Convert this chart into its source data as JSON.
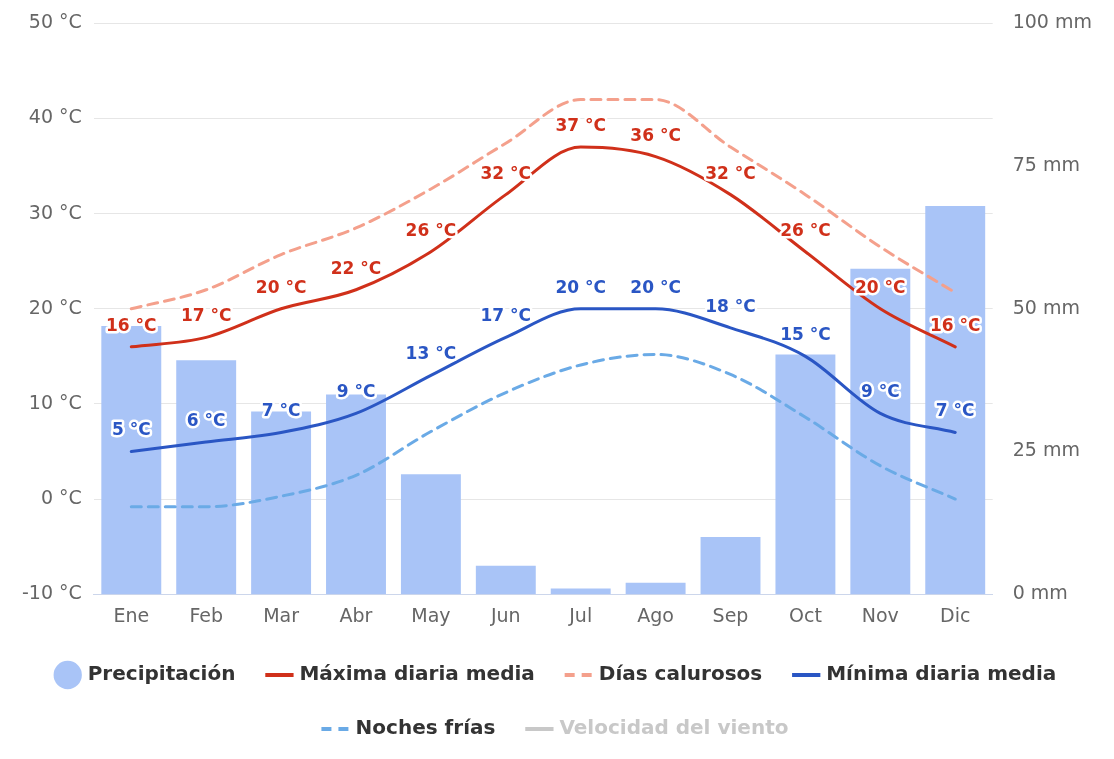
{
  "chart_data": {
    "type": "line",
    "categories": [
      "Ene",
      "Feb",
      "Mar",
      "Abr",
      "May",
      "Jun",
      "Jul",
      "Ago",
      "Sep",
      "Oct",
      "Nov",
      "Dic"
    ],
    "ylim": [
      -10,
      50
    ],
    "yticks": [
      {
        "value": -10,
        "label": "-10 °C"
      },
      {
        "value": 0,
        "label": "0 °C"
      },
      {
        "value": 10,
        "label": "10 °C"
      },
      {
        "value": 20,
        "label": "20 °C"
      },
      {
        "value": 30,
        "label": "30 °C"
      },
      {
        "value": 40,
        "label": "40 °C"
      },
      {
        "value": 50,
        "label": "50 °C"
      }
    ],
    "y2lim": [
      0,
      100
    ],
    "y2ticks": [
      {
        "value": 0,
        "label": "0 mm"
      },
      {
        "value": 25,
        "label": "25 mm"
      },
      {
        "value": 50,
        "label": "50 mm"
      },
      {
        "value": 75,
        "label": "75 mm"
      },
      {
        "value": 100,
        "label": "100 mm"
      }
    ],
    "grid": "y",
    "legend": "bottom",
    "marker": "none",
    "series": [
      {
        "name": "Precipitación",
        "type": "bar",
        "axis": "y2",
        "color": "#a9c4f7",
        "values": [
          47,
          41,
          32,
          35,
          21,
          5,
          1,
          2,
          10,
          42,
          57,
          68
        ]
      },
      {
        "name": "Máxima diaria media",
        "color": "#d0301a",
        "line_style": "solid",
        "values": [
          16,
          17,
          20,
          22,
          26,
          32,
          37,
          36,
          32,
          26,
          20,
          16
        ],
        "value_labels": [
          "16 °C",
          "17 °C",
          "20 °C",
          "22 °C",
          "26 °C",
          "32 °C",
          "37 °C",
          "36 °C",
          "32 °C",
          "26 °C",
          "20 °C",
          "16 °C"
        ]
      },
      {
        "name": "Días calurosos",
        "color": "#f4a08c",
        "line_style": "dashed",
        "values": [
          20,
          22,
          25.7,
          28.5,
          32.6,
          37.4,
          42,
          42,
          37,
          32,
          26.5,
          21.7
        ]
      },
      {
        "name": "Mínima diaria media",
        "color": "#2a56c4",
        "line_style": "solid",
        "values": [
          5,
          6,
          7,
          9,
          13,
          17,
          20,
          20,
          18,
          15,
          9,
          7
        ],
        "value_labels": [
          "5 °C",
          "6 °C",
          "7 °C",
          "9 °C",
          "13 °C",
          "17 °C",
          "20 °C",
          "20 °C",
          "18 °C",
          "15 °C",
          "9 °C",
          "7 °C"
        ]
      },
      {
        "name": "Noches frías",
        "color": "#6aaae6",
        "line_style": "dashed",
        "values": [
          -0.8,
          -0.8,
          0.3,
          2.5,
          7.1,
          11.2,
          14.1,
          15.2,
          13.1,
          8.6,
          3.5,
          0
        ]
      },
      {
        "name": "Velocidad del viento",
        "color": "#c8c8c8",
        "line_style": "solid",
        "values": [
          null,
          null,
          null,
          null,
          null,
          null,
          null,
          null,
          null,
          null,
          null,
          null
        ]
      }
    ]
  }
}
